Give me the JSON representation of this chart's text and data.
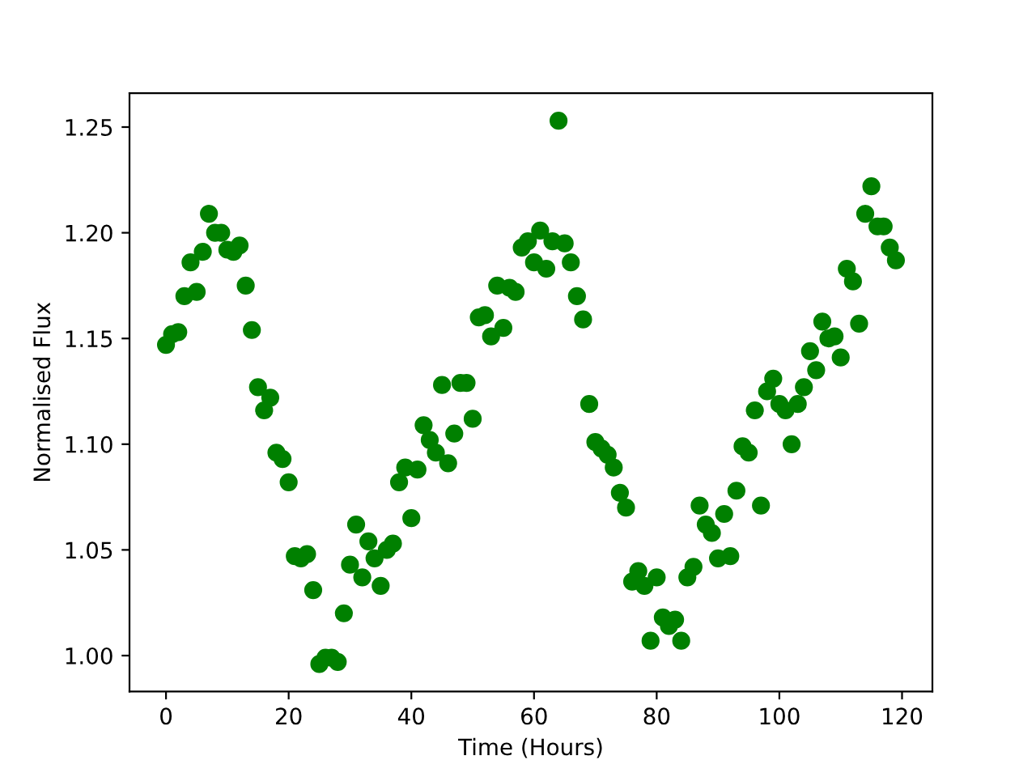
{
  "chart_data": {
    "type": "scatter",
    "xlabel": "Time (Hours)",
    "ylabel": "Normalised Flux",
    "x": [
      0,
      1,
      2,
      3,
      4,
      5,
      6,
      7,
      8,
      9,
      10,
      11,
      12,
      13,
      14,
      15,
      16,
      17,
      18,
      19,
      20,
      21,
      22,
      23,
      24,
      25,
      26,
      27,
      28,
      29,
      30,
      31,
      32,
      33,
      34,
      35,
      36,
      37,
      38,
      39,
      40,
      41,
      42,
      43,
      44,
      45,
      46,
      47,
      48,
      49,
      50,
      51,
      52,
      53,
      54,
      55,
      56,
      57,
      58,
      59,
      60,
      61,
      62,
      63,
      64,
      65,
      66,
      67,
      68,
      69,
      70,
      71,
      72,
      73,
      74,
      75,
      76,
      77,
      78,
      79,
      80,
      81,
      82,
      83,
      84,
      85,
      86,
      87,
      88,
      89,
      90,
      91,
      92,
      93,
      94,
      95,
      96,
      97,
      98,
      99,
      100,
      101,
      102,
      103,
      104,
      105,
      106,
      107,
      108,
      109,
      110,
      111,
      112,
      113,
      114,
      115,
      116,
      117,
      118,
      119
    ],
    "series": [
      {
        "color": "#008000",
        "values": [
          1.147,
          1.152,
          1.153,
          1.17,
          1.186,
          1.172,
          1.191,
          1.209,
          1.2,
          1.2,
          1.192,
          1.191,
          1.194,
          1.175,
          1.154,
          1.127,
          1.116,
          1.122,
          1.096,
          1.093,
          1.082,
          1.047,
          1.046,
          1.048,
          1.031,
          0.996,
          0.999,
          0.999,
          0.997,
          1.02,
          1.043,
          1.062,
          1.037,
          1.054,
          1.046,
          1.033,
          1.05,
          1.053,
          1.082,
          1.089,
          1.065,
          1.088,
          1.109,
          1.102,
          1.096,
          1.128,
          1.091,
          1.105,
          1.129,
          1.129,
          1.112,
          1.16,
          1.161,
          1.151,
          1.175,
          1.155,
          1.174,
          1.172,
          1.193,
          1.196,
          1.186,
          1.201,
          1.183,
          1.196,
          1.253,
          1.195,
          1.186,
          1.17,
          1.159,
          1.119,
          1.101,
          1.098,
          1.095,
          1.089,
          1.077,
          1.07,
          1.035,
          1.04,
          1.033,
          1.007,
          1.037,
          1.018,
          1.014,
          1.017,
          1.007,
          1.037,
          1.042,
          1.071,
          1.062,
          1.058,
          1.046,
          1.067,
          1.047,
          1.078,
          1.099,
          1.096,
          1.116,
          1.071,
          1.125,
          1.131,
          1.119,
          1.116,
          1.1,
          1.119,
          1.127,
          1.144,
          1.135,
          1.158,
          1.15,
          1.151,
          1.141,
          1.183,
          1.177,
          1.157,
          1.209,
          1.222,
          1.203,
          1.203,
          1.193,
          1.187
        ]
      }
    ],
    "marker": "circle",
    "xlim": [
      -5.95,
      124.95
    ],
    "ylim": [
      0.983,
      1.266
    ],
    "xticks": [
      0,
      20,
      40,
      60,
      80,
      100,
      120
    ],
    "yticks": [
      {
        "value": 1.0,
        "label": "1.00"
      },
      {
        "value": 1.05,
        "label": "1.05"
      },
      {
        "value": 1.1,
        "label": "1.10"
      },
      {
        "value": 1.15,
        "label": "1.15"
      },
      {
        "value": 1.2,
        "label": "1.20"
      },
      {
        "value": 1.25,
        "label": "1.25"
      }
    ]
  }
}
